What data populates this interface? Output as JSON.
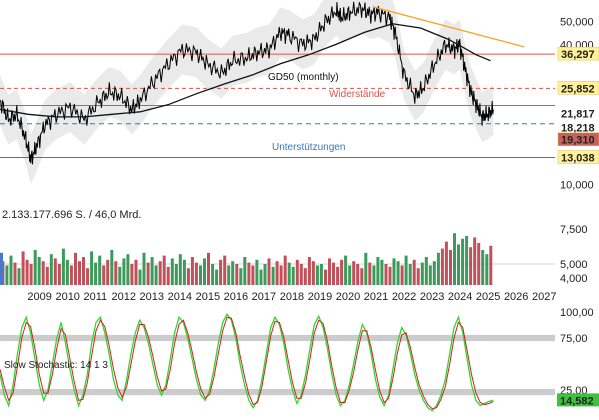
{
  "chart_data": {
    "type": "line",
    "price": {
      "series_name": "price",
      "scale": "log",
      "x": [
        2008.0,
        2008.3,
        2008.6,
        2008.9,
        2009.1,
        2009.3,
        2009.6,
        2010.0,
        2010.5,
        2011.0,
        2011.5,
        2011.9,
        2012.3,
        2012.7,
        2013.0,
        2013.5,
        2014.0,
        2014.5,
        2015.0,
        2015.4,
        2015.9,
        2016.3,
        2016.8,
        2017.2,
        2017.6,
        2018.0,
        2018.3,
        2018.8,
        2019.2,
        2019.6,
        2020.0,
        2020.2,
        2020.5,
        2020.9,
        2021.2,
        2021.5,
        2021.9,
        2022.1,
        2022.4,
        2022.8,
        2023.1,
        2023.5,
        2023.9,
        2024.2,
        2024.4,
        2024.6,
        2024.8,
        2025.0,
        2025.2,
        2025.4,
        2025.6
      ],
      "y": [
        23,
        19,
        20,
        16,
        12.8,
        14.5,
        18,
        20,
        21.5,
        19,
        22.5,
        25,
        24,
        21,
        23,
        28,
        33,
        38,
        37,
        33,
        30,
        34,
        35,
        37,
        38,
        45,
        44,
        40,
        42,
        50,
        56,
        52,
        55,
        57,
        54,
        55,
        52,
        45,
        30,
        24,
        26,
        33,
        40,
        38,
        40,
        31,
        25,
        22,
        19.5,
        20,
        21
      ],
      "range_labels": [
        {
          "value": "36,297",
          "color": "#fff4a0",
          "bg": "#fff29a"
        },
        {
          "value": "25,852",
          "color": "#fff29a",
          "bg": "#fff29a"
        },
        {
          "value": "21,817",
          "color": "#2e9d3e",
          "bg": "#ffffff"
        },
        {
          "value": "18,218",
          "color": "#222",
          "bg": "#ffffff"
        },
        {
          "value": "19,310",
          "color": "#ffffff",
          "bg": "#c96060"
        },
        {
          "value": "13,038",
          "color": "#222",
          "bg": "#fff29a"
        }
      ]
    },
    "gd50": {
      "label": "GD50 (monthly)",
      "x": [
        2008.0,
        2009.0,
        2010.0,
        2011.0,
        2012.0,
        2013.0,
        2014.0,
        2015.0,
        2016.0,
        2017.0,
        2018.0,
        2019.0,
        2020.0,
        2021.0,
        2022.0,
        2023.0,
        2024.0,
        2025.0,
        2025.5
      ],
      "y": [
        21,
        20,
        19.5,
        19.5,
        20,
        20.5,
        22,
        24.5,
        27,
        29.5,
        33,
        36,
        40,
        45,
        49,
        47,
        42,
        36,
        34
      ]
    },
    "resistance_lines": [
      36.297,
      25.852,
      21.817
    ],
    "support_lines": [
      18.218,
      13.038
    ],
    "resistance_label": "Widerstände",
    "support_label": "Unterstützungen",
    "trendline": {
      "x": [
        2021.3,
        2026.7
      ],
      "y": [
        58,
        39
      ]
    },
    "price_axis": {
      "ticks": [
        "50,000",
        "40,000",
        "10,000"
      ],
      "values": [
        50,
        40,
        10
      ]
    },
    "volume": {
      "label": "2.133.177.696 S. / 46,0 Mrd.",
      "ticks": [
        "7,500",
        "5,000",
        "4,000"
      ],
      "values": [
        5.2,
        4.9,
        5.6,
        5.1,
        4.7,
        5.9,
        5.3,
        5.0,
        6.0,
        5.5,
        5.2,
        4.8,
        5.7,
        5.4,
        5.0,
        6.1,
        5.3,
        4.9,
        5.8,
        5.2,
        5.5,
        4.7,
        5.9,
        5.1,
        5.6,
        4.9,
        5.3,
        6.0,
        5.2,
        4.8,
        5.4,
        5.7,
        5.0,
        5.3,
        4.6,
        5.8,
        5.1,
        5.5,
        4.9,
        5.2,
        5.6,
        4.8,
        5.4,
        5.0,
        5.7,
        5.3,
        4.7,
        5.5,
        5.1,
        4.9,
        5.4,
        5.8,
        5.0,
        4.6,
        5.3,
        5.6,
        4.9,
        5.2,
        5.0,
        4.7,
        5.5,
        5.1,
        4.9,
        5.3,
        4.6,
        5.0,
        5.4,
        4.8,
        5.2,
        4.9,
        5.6,
        5.1,
        4.8,
        5.3,
        5.0,
        4.7,
        5.5,
        5.2,
        4.9,
        5.0,
        4.6,
        5.4,
        5.1,
        4.8,
        5.3,
        5.6,
        4.9,
        5.2,
        5.0,
        4.7,
        5.8,
        5.1,
        4.9,
        5.5,
        5.3,
        5.0,
        4.8,
        5.4,
        5.2,
        4.9,
        5.6,
        5.0,
        5.3,
        4.7,
        5.1,
        5.5,
        4.9,
        5.2,
        5.8,
        6.1,
        6.6,
        6.0,
        7.2,
        6.4,
        6.8,
        7.0,
        6.2,
        6.9,
        6.5,
        6.0,
        5.7,
        6.3
      ]
    },
    "stochastic": {
      "label": "Slow Stochastic: 14 1 3",
      "value_label": "14,582",
      "ticks": [
        "100,00",
        "75,00",
        "25,00"
      ],
      "values": [
        100,
        75,
        25
      ],
      "k": [
        40,
        20,
        10,
        30,
        60,
        85,
        95,
        80,
        55,
        30,
        15,
        25,
        50,
        75,
        90,
        70,
        45,
        25,
        10,
        20,
        40,
        70,
        90,
        95,
        80,
        60,
        35,
        20,
        15,
        35,
        60,
        80,
        92,
        85,
        70,
        50,
        30,
        20,
        30,
        55,
        80,
        95,
        90,
        75,
        55,
        35,
        20,
        15,
        25,
        45,
        70,
        90,
        98,
        92,
        75,
        50,
        30,
        15,
        8,
        15,
        35,
        60,
        85,
        95,
        88,
        70,
        45,
        25,
        12,
        20,
        40,
        65,
        88,
        96,
        85,
        65,
        40,
        20,
        10,
        15,
        30,
        50,
        72,
        88,
        80,
        60,
        35,
        18,
        10,
        20,
        45,
        70,
        85,
        78,
        60,
        40,
        25,
        15,
        8,
        5,
        10,
        20,
        35,
        60,
        85,
        95,
        80,
        55,
        30,
        15,
        10,
        12,
        14,
        15
      ],
      "d": [
        45,
        28,
        15,
        22,
        48,
        75,
        90,
        86,
        65,
        40,
        22,
        22,
        40,
        65,
        84,
        78,
        55,
        33,
        15,
        16,
        32,
        58,
        82,
        92,
        86,
        68,
        45,
        27,
        18,
        28,
        50,
        72,
        88,
        88,
        76,
        58,
        38,
        24,
        26,
        45,
        70,
        88,
        92,
        80,
        62,
        42,
        26,
        17,
        21,
        37,
        60,
        82,
        95,
        94,
        80,
        58,
        38,
        21,
        11,
        13,
        28,
        52,
        77,
        91,
        90,
        76,
        54,
        32,
        17,
        17,
        32,
        55,
        80,
        92,
        89,
        72,
        48,
        27,
        13,
        13,
        25,
        42,
        64,
        82,
        82,
        66,
        44,
        24,
        13,
        17,
        36,
        60,
        78,
        80,
        66,
        47,
        30,
        19,
        11,
        7,
        8,
        16,
        28,
        50,
        75,
        90,
        85,
        63,
        40,
        22,
        13,
        11,
        12,
        14
      ]
    },
    "years": [
      "2009",
      "2010",
      "2011",
      "2012",
      "2013",
      "2014",
      "2015",
      "2016",
      "2017",
      "2018",
      "2019",
      "2020",
      "2021",
      "2022",
      "2023",
      "2024",
      "2025",
      "2026",
      "2027"
    ]
  },
  "colors": {
    "price": "#000000",
    "gd50": "#111111",
    "resistance": "#d9534f",
    "support": "#3b78b5",
    "trend": "#f5a623",
    "vol_up": "#3c9b5a",
    "vol_down": "#c0505a",
    "stoch_k": "#33d633",
    "stoch_d": "#d42020"
  }
}
